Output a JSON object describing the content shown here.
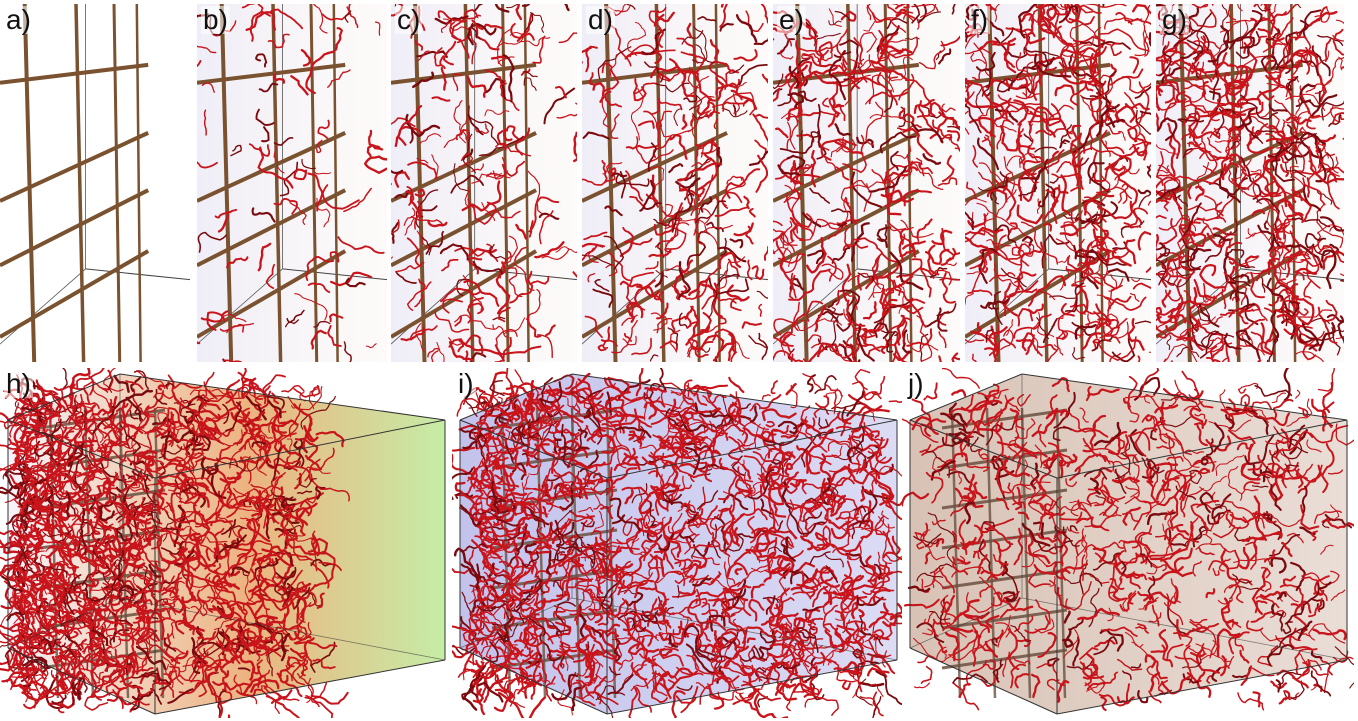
{
  "panels": [
    {
      "id": "a",
      "label": "a)",
      "density": 0,
      "tint": "none"
    },
    {
      "id": "b",
      "label": "b)",
      "density": 0.15,
      "tint": "none"
    },
    {
      "id": "c",
      "label": "c)",
      "density": 0.35,
      "tint": "none"
    },
    {
      "id": "d",
      "label": "d)",
      "density": 0.5,
      "tint": "none"
    },
    {
      "id": "e",
      "label": "e)",
      "density": 0.65,
      "tint": "none"
    },
    {
      "id": "f",
      "label": "f)",
      "density": 0.82,
      "tint": "none"
    },
    {
      "id": "g",
      "label": "g)",
      "density": 1.0,
      "tint": "none"
    },
    {
      "id": "h",
      "label": "h)",
      "density": 1.0,
      "tint": "orange-green"
    },
    {
      "id": "i",
      "label": "i)",
      "density": 1.0,
      "tint": "blue"
    },
    {
      "id": "j",
      "label": "j)",
      "density": 0.5,
      "tint": "brown"
    }
  ],
  "colors": {
    "rod": "#7a5230",
    "vortex": "#c8141a",
    "vortex_dark": "#7a0a0e",
    "frame": "#333333",
    "tint_orange": "#e8a060",
    "tint_green": "#b8e890",
    "tint_blue": "#9a9ae0",
    "tint_brown": "#b89078"
  }
}
